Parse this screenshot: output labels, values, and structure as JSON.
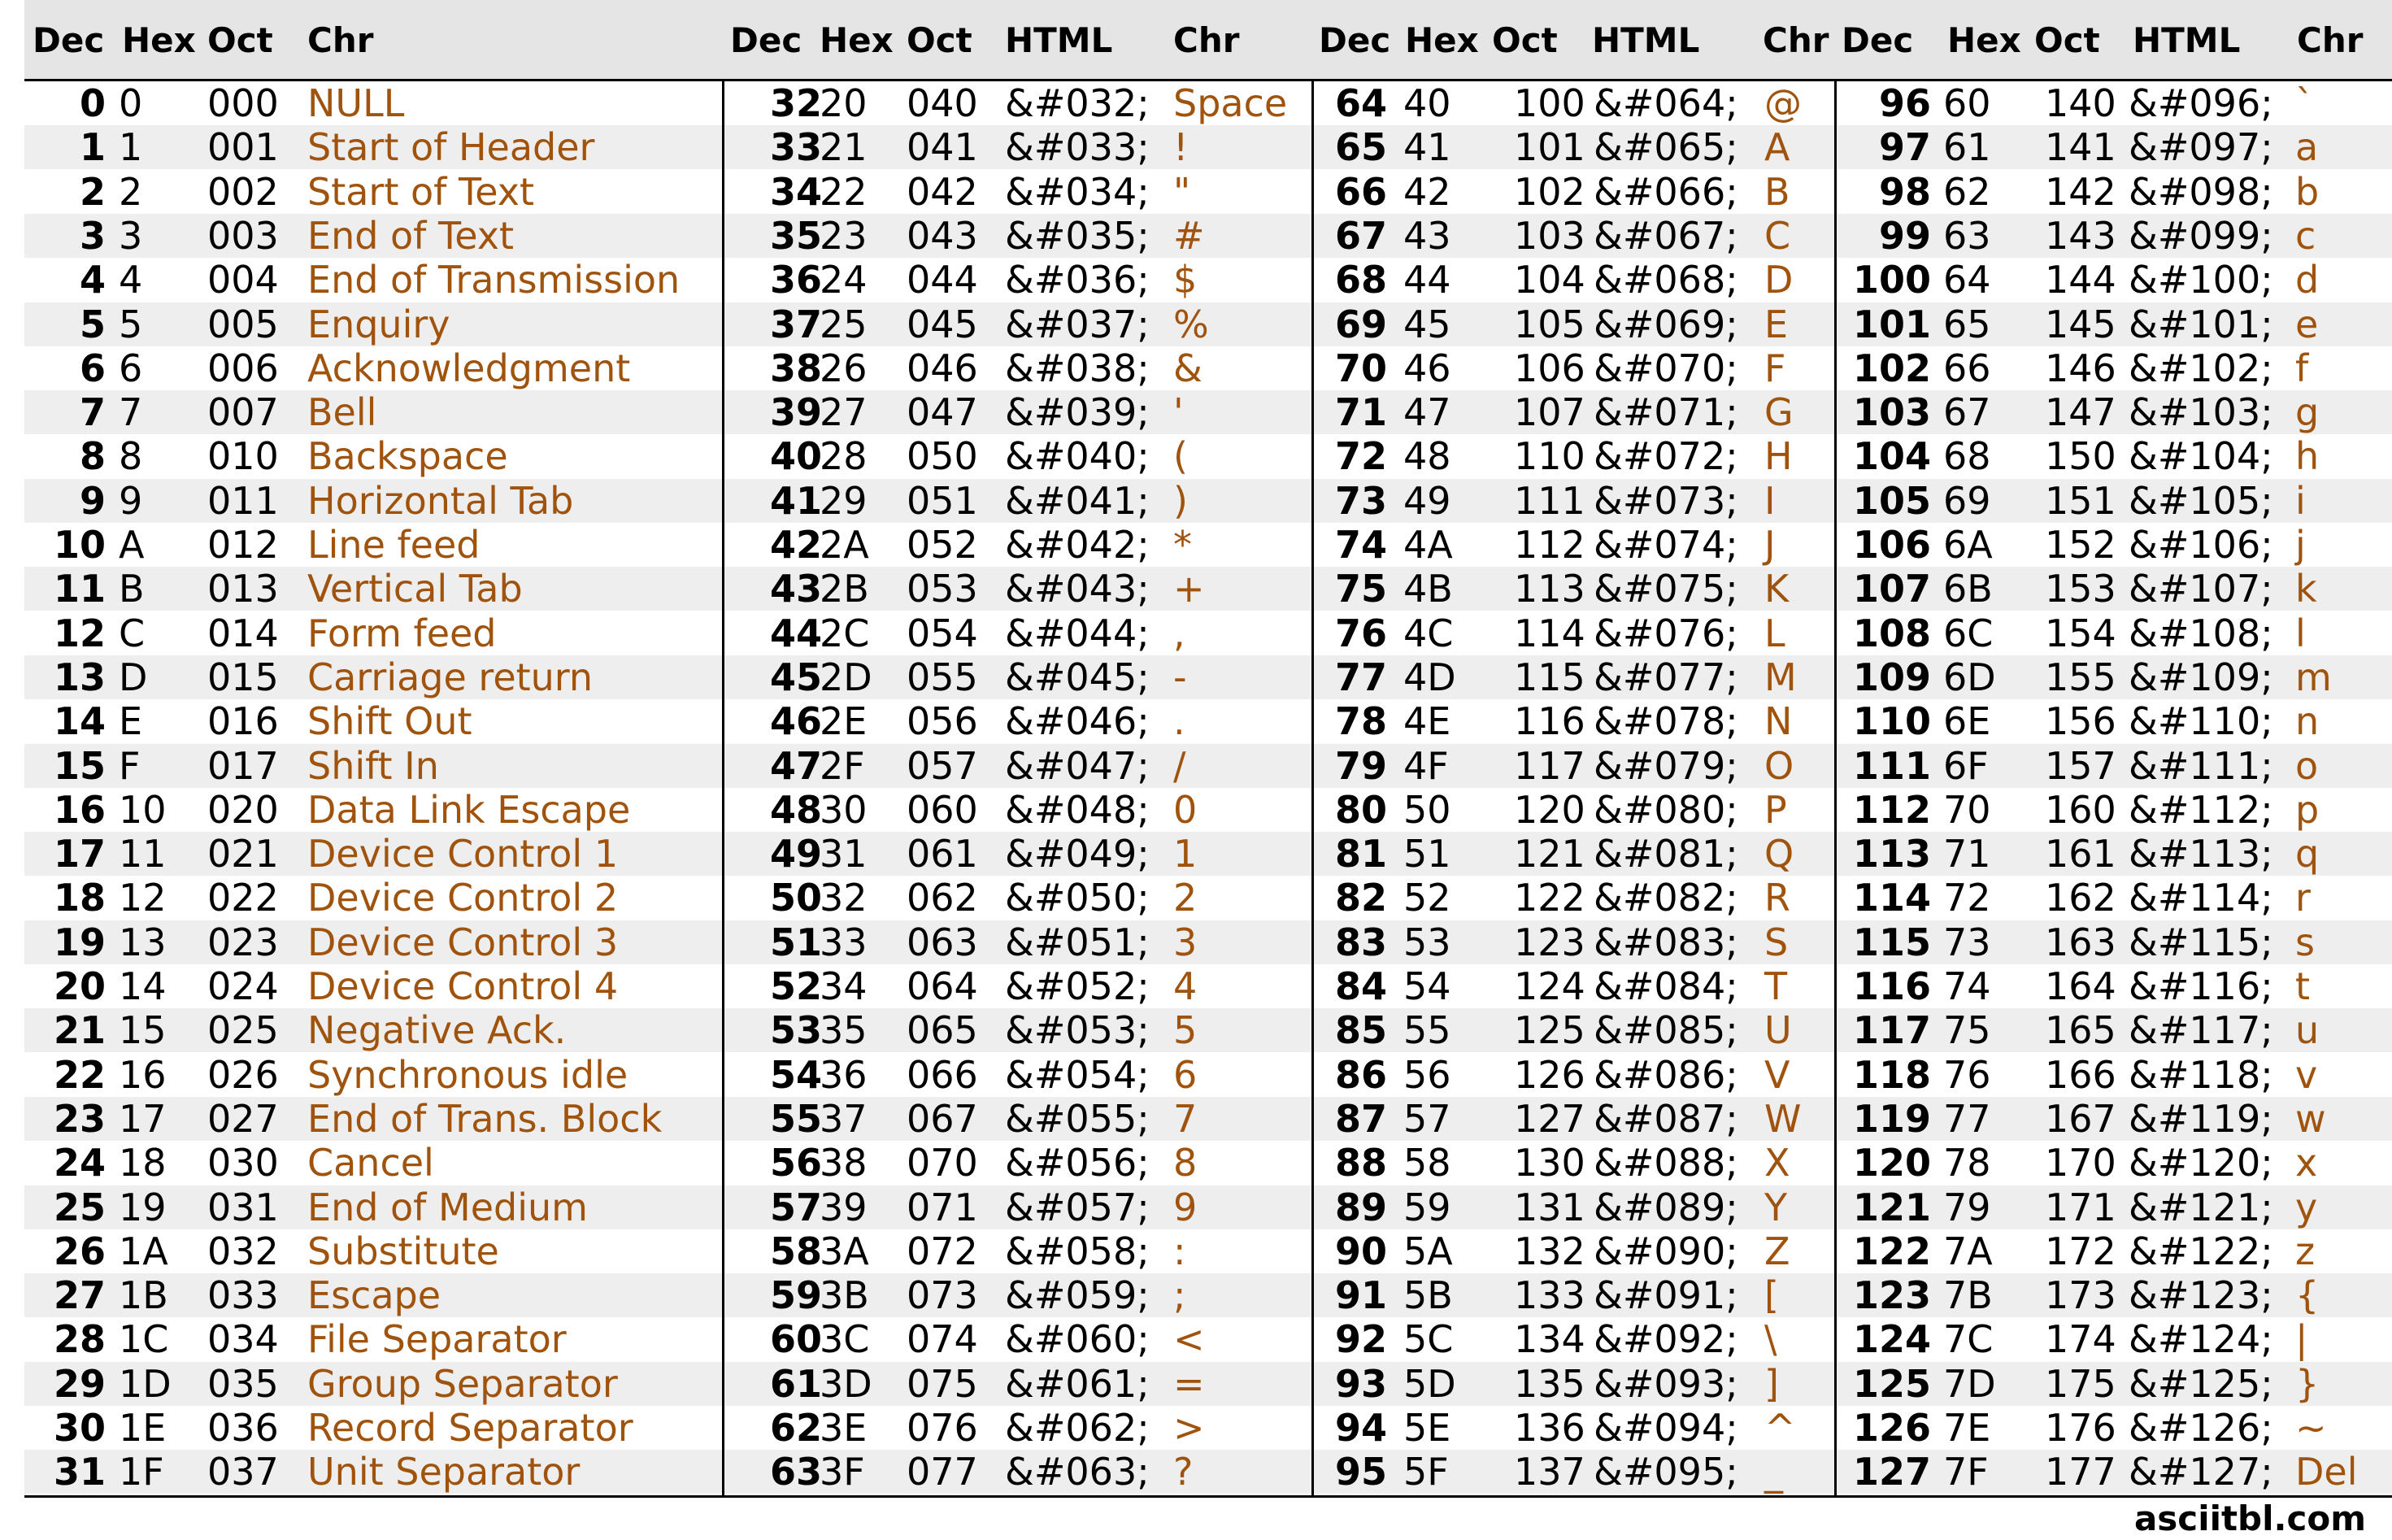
{
  "header": {
    "groups": [
      [
        "Dec",
        "Hex",
        "Oct",
        "Chr"
      ],
      [
        "Dec",
        "Hex",
        "Oct",
        "HTML",
        "Chr"
      ],
      [
        "Dec",
        "Hex",
        "Oct",
        "HTML",
        "Chr"
      ],
      [
        "Dec",
        "Hex",
        "Oct",
        "HTML",
        "Chr"
      ]
    ]
  },
  "colors": {
    "chr_text": "#a0530d",
    "header_bg": "#e5e5e5",
    "stripe_bg": "#eeeeee"
  },
  "group1": [
    {
      "dec": "0",
      "hex": "0",
      "oct": "000",
      "chr": "NULL"
    },
    {
      "dec": "1",
      "hex": "1",
      "oct": "001",
      "chr": "Start of Header"
    },
    {
      "dec": "2",
      "hex": "2",
      "oct": "002",
      "chr": "Start of Text"
    },
    {
      "dec": "3",
      "hex": "3",
      "oct": "003",
      "chr": "End of Text"
    },
    {
      "dec": "4",
      "hex": "4",
      "oct": "004",
      "chr": "End of Transmission"
    },
    {
      "dec": "5",
      "hex": "5",
      "oct": "005",
      "chr": "Enquiry"
    },
    {
      "dec": "6",
      "hex": "6",
      "oct": "006",
      "chr": "Acknowledgment"
    },
    {
      "dec": "7",
      "hex": "7",
      "oct": "007",
      "chr": "Bell"
    },
    {
      "dec": "8",
      "hex": "8",
      "oct": "010",
      "chr": "Backspace"
    },
    {
      "dec": "9",
      "hex": "9",
      "oct": "011",
      "chr": "Horizontal Tab"
    },
    {
      "dec": "10",
      "hex": "A",
      "oct": "012",
      "chr": "Line feed"
    },
    {
      "dec": "11",
      "hex": "B",
      "oct": "013",
      "chr": "Vertical Tab"
    },
    {
      "dec": "12",
      "hex": "C",
      "oct": "014",
      "chr": "Form feed"
    },
    {
      "dec": "13",
      "hex": "D",
      "oct": "015",
      "chr": "Carriage return"
    },
    {
      "dec": "14",
      "hex": "E",
      "oct": "016",
      "chr": "Shift Out"
    },
    {
      "dec": "15",
      "hex": "F",
      "oct": "017",
      "chr": "Shift In"
    },
    {
      "dec": "16",
      "hex": "10",
      "oct": "020",
      "chr": "Data Link Escape"
    },
    {
      "dec": "17",
      "hex": "11",
      "oct": "021",
      "chr": "Device Control 1"
    },
    {
      "dec": "18",
      "hex": "12",
      "oct": "022",
      "chr": "Device Control 2"
    },
    {
      "dec": "19",
      "hex": "13",
      "oct": "023",
      "chr": "Device Control 3"
    },
    {
      "dec": "20",
      "hex": "14",
      "oct": "024",
      "chr": "Device Control 4"
    },
    {
      "dec": "21",
      "hex": "15",
      "oct": "025",
      "chr": "Negative Ack."
    },
    {
      "dec": "22",
      "hex": "16",
      "oct": "026",
      "chr": "Synchronous idle"
    },
    {
      "dec": "23",
      "hex": "17",
      "oct": "027",
      "chr": "End of Trans. Block"
    },
    {
      "dec": "24",
      "hex": "18",
      "oct": "030",
      "chr": "Cancel"
    },
    {
      "dec": "25",
      "hex": "19",
      "oct": "031",
      "chr": "End of Medium"
    },
    {
      "dec": "26",
      "hex": "1A",
      "oct": "032",
      "chr": "Substitute"
    },
    {
      "dec": "27",
      "hex": "1B",
      "oct": "033",
      "chr": "Escape"
    },
    {
      "dec": "28",
      "hex": "1C",
      "oct": "034",
      "chr": "File Separator"
    },
    {
      "dec": "29",
      "hex": "1D",
      "oct": "035",
      "chr": "Group Separator"
    },
    {
      "dec": "30",
      "hex": "1E",
      "oct": "036",
      "chr": "Record Separator"
    },
    {
      "dec": "31",
      "hex": "1F",
      "oct": "037",
      "chr": "Unit Separator"
    }
  ],
  "group2": [
    {
      "dec": "32",
      "hex": "20",
      "oct": "040",
      "html": "&#032;",
      "chr": "Space"
    },
    {
      "dec": "33",
      "hex": "21",
      "oct": "041",
      "html": "&#033;",
      "chr": "!"
    },
    {
      "dec": "34",
      "hex": "22",
      "oct": "042",
      "html": "&#034;",
      "chr": "\""
    },
    {
      "dec": "35",
      "hex": "23",
      "oct": "043",
      "html": "&#035;",
      "chr": "#"
    },
    {
      "dec": "36",
      "hex": "24",
      "oct": "044",
      "html": "&#036;",
      "chr": "$"
    },
    {
      "dec": "37",
      "hex": "25",
      "oct": "045",
      "html": "&#037;",
      "chr": "%"
    },
    {
      "dec": "38",
      "hex": "26",
      "oct": "046",
      "html": "&#038;",
      "chr": "&"
    },
    {
      "dec": "39",
      "hex": "27",
      "oct": "047",
      "html": "&#039;",
      "chr": "'"
    },
    {
      "dec": "40",
      "hex": "28",
      "oct": "050",
      "html": "&#040;",
      "chr": "("
    },
    {
      "dec": "41",
      "hex": "29",
      "oct": "051",
      "html": "&#041;",
      "chr": ")"
    },
    {
      "dec": "42",
      "hex": "2A",
      "oct": "052",
      "html": "&#042;",
      "chr": "*"
    },
    {
      "dec": "43",
      "hex": "2B",
      "oct": "053",
      "html": "&#043;",
      "chr": "+"
    },
    {
      "dec": "44",
      "hex": "2C",
      "oct": "054",
      "html": "&#044;",
      "chr": ","
    },
    {
      "dec": "45",
      "hex": "2D",
      "oct": "055",
      "html": "&#045;",
      "chr": "-"
    },
    {
      "dec": "46",
      "hex": "2E",
      "oct": "056",
      "html": "&#046;",
      "chr": "."
    },
    {
      "dec": "47",
      "hex": "2F",
      "oct": "057",
      "html": "&#047;",
      "chr": "/"
    },
    {
      "dec": "48",
      "hex": "30",
      "oct": "060",
      "html": "&#048;",
      "chr": "0"
    },
    {
      "dec": "49",
      "hex": "31",
      "oct": "061",
      "html": "&#049;",
      "chr": "1"
    },
    {
      "dec": "50",
      "hex": "32",
      "oct": "062",
      "html": "&#050;",
      "chr": "2"
    },
    {
      "dec": "51",
      "hex": "33",
      "oct": "063",
      "html": "&#051;",
      "chr": "3"
    },
    {
      "dec": "52",
      "hex": "34",
      "oct": "064",
      "html": "&#052;",
      "chr": "4"
    },
    {
      "dec": "53",
      "hex": "35",
      "oct": "065",
      "html": "&#053;",
      "chr": "5"
    },
    {
      "dec": "54",
      "hex": "36",
      "oct": "066",
      "html": "&#054;",
      "chr": "6"
    },
    {
      "dec": "55",
      "hex": "37",
      "oct": "067",
      "html": "&#055;",
      "chr": "7"
    },
    {
      "dec": "56",
      "hex": "38",
      "oct": "070",
      "html": "&#056;",
      "chr": "8"
    },
    {
      "dec": "57",
      "hex": "39",
      "oct": "071",
      "html": "&#057;",
      "chr": "9"
    },
    {
      "dec": "58",
      "hex": "3A",
      "oct": "072",
      "html": "&#058;",
      "chr": ":"
    },
    {
      "dec": "59",
      "hex": "3B",
      "oct": "073",
      "html": "&#059;",
      "chr": ";"
    },
    {
      "dec": "60",
      "hex": "3C",
      "oct": "074",
      "html": "&#060;",
      "chr": "<"
    },
    {
      "dec": "61",
      "hex": "3D",
      "oct": "075",
      "html": "&#061;",
      "chr": "="
    },
    {
      "dec": "62",
      "hex": "3E",
      "oct": "076",
      "html": "&#062;",
      "chr": ">"
    },
    {
      "dec": "63",
      "hex": "3F",
      "oct": "077",
      "html": "&#063;",
      "chr": "?"
    }
  ],
  "group3": [
    {
      "dec": "64",
      "hex": "40",
      "oct": "100",
      "html": "&#064;",
      "chr": "@"
    },
    {
      "dec": "65",
      "hex": "41",
      "oct": "101",
      "html": "&#065;",
      "chr": "A"
    },
    {
      "dec": "66",
      "hex": "42",
      "oct": "102",
      "html": "&#066;",
      "chr": "B"
    },
    {
      "dec": "67",
      "hex": "43",
      "oct": "103",
      "html": "&#067;",
      "chr": "C"
    },
    {
      "dec": "68",
      "hex": "44",
      "oct": "104",
      "html": "&#068;",
      "chr": "D"
    },
    {
      "dec": "69",
      "hex": "45",
      "oct": "105",
      "html": "&#069;",
      "chr": "E"
    },
    {
      "dec": "70",
      "hex": "46",
      "oct": "106",
      "html": "&#070;",
      "chr": "F"
    },
    {
      "dec": "71",
      "hex": "47",
      "oct": "107",
      "html": "&#071;",
      "chr": "G"
    },
    {
      "dec": "72",
      "hex": "48",
      "oct": "110",
      "html": "&#072;",
      "chr": "H"
    },
    {
      "dec": "73",
      "hex": "49",
      "oct": "111",
      "html": "&#073;",
      "chr": "I"
    },
    {
      "dec": "74",
      "hex": "4A",
      "oct": "112",
      "html": "&#074;",
      "chr": "J"
    },
    {
      "dec": "75",
      "hex": "4B",
      "oct": "113",
      "html": "&#075;",
      "chr": "K"
    },
    {
      "dec": "76",
      "hex": "4C",
      "oct": "114",
      "html": "&#076;",
      "chr": "L"
    },
    {
      "dec": "77",
      "hex": "4D",
      "oct": "115",
      "html": "&#077;",
      "chr": "M"
    },
    {
      "dec": "78",
      "hex": "4E",
      "oct": "116",
      "html": "&#078;",
      "chr": "N"
    },
    {
      "dec": "79",
      "hex": "4F",
      "oct": "117",
      "html": "&#079;",
      "chr": "O"
    },
    {
      "dec": "80",
      "hex": "50",
      "oct": "120",
      "html": "&#080;",
      "chr": "P"
    },
    {
      "dec": "81",
      "hex": "51",
      "oct": "121",
      "html": "&#081;",
      "chr": "Q"
    },
    {
      "dec": "82",
      "hex": "52",
      "oct": "122",
      "html": "&#082;",
      "chr": "R"
    },
    {
      "dec": "83",
      "hex": "53",
      "oct": "123",
      "html": "&#083;",
      "chr": "S"
    },
    {
      "dec": "84",
      "hex": "54",
      "oct": "124",
      "html": "&#084;",
      "chr": "T"
    },
    {
      "dec": "85",
      "hex": "55",
      "oct": "125",
      "html": "&#085;",
      "chr": "U"
    },
    {
      "dec": "86",
      "hex": "56",
      "oct": "126",
      "html": "&#086;",
      "chr": "V"
    },
    {
      "dec": "87",
      "hex": "57",
      "oct": "127",
      "html": "&#087;",
      "chr": "W"
    },
    {
      "dec": "88",
      "hex": "58",
      "oct": "130",
      "html": "&#088;",
      "chr": "X"
    },
    {
      "dec": "89",
      "hex": "59",
      "oct": "131",
      "html": "&#089;",
      "chr": "Y"
    },
    {
      "dec": "90",
      "hex": "5A",
      "oct": "132",
      "html": "&#090;",
      "chr": "Z"
    },
    {
      "dec": "91",
      "hex": "5B",
      "oct": "133",
      "html": "&#091;",
      "chr": "["
    },
    {
      "dec": "92",
      "hex": "5C",
      "oct": "134",
      "html": "&#092;",
      "chr": "\\"
    },
    {
      "dec": "93",
      "hex": "5D",
      "oct": "135",
      "html": "&#093;",
      "chr": "]"
    },
    {
      "dec": "94",
      "hex": "5E",
      "oct": "136",
      "html": "&#094;",
      "chr": "^"
    },
    {
      "dec": "95",
      "hex": "5F",
      "oct": "137",
      "html": "&#095;",
      "chr": "_"
    }
  ],
  "group4": [
    {
      "dec": "96",
      "hex": "60",
      "oct": "140",
      "html": "&#096;",
      "chr": "`"
    },
    {
      "dec": "97",
      "hex": "61",
      "oct": "141",
      "html": "&#097;",
      "chr": "a"
    },
    {
      "dec": "98",
      "hex": "62",
      "oct": "142",
      "html": "&#098;",
      "chr": "b"
    },
    {
      "dec": "99",
      "hex": "63",
      "oct": "143",
      "html": "&#099;",
      "chr": "c"
    },
    {
      "dec": "100",
      "hex": "64",
      "oct": "144",
      "html": "&#100;",
      "chr": "d"
    },
    {
      "dec": "101",
      "hex": "65",
      "oct": "145",
      "html": "&#101;",
      "chr": "e"
    },
    {
      "dec": "102",
      "hex": "66",
      "oct": "146",
      "html": "&#102;",
      "chr": "f"
    },
    {
      "dec": "103",
      "hex": "67",
      "oct": "147",
      "html": "&#103;",
      "chr": "g"
    },
    {
      "dec": "104",
      "hex": "68",
      "oct": "150",
      "html": "&#104;",
      "chr": "h"
    },
    {
      "dec": "105",
      "hex": "69",
      "oct": "151",
      "html": "&#105;",
      "chr": "i"
    },
    {
      "dec": "106",
      "hex": "6A",
      "oct": "152",
      "html": "&#106;",
      "chr": "j"
    },
    {
      "dec": "107",
      "hex": "6B",
      "oct": "153",
      "html": "&#107;",
      "chr": "k"
    },
    {
      "dec": "108",
      "hex": "6C",
      "oct": "154",
      "html": "&#108;",
      "chr": "l"
    },
    {
      "dec": "109",
      "hex": "6D",
      "oct": "155",
      "html": "&#109;",
      "chr": "m"
    },
    {
      "dec": "110",
      "hex": "6E",
      "oct": "156",
      "html": "&#110;",
      "chr": "n"
    },
    {
      "dec": "111",
      "hex": "6F",
      "oct": "157",
      "html": "&#111;",
      "chr": "o"
    },
    {
      "dec": "112",
      "hex": "70",
      "oct": "160",
      "html": "&#112;",
      "chr": "p"
    },
    {
      "dec": "113",
      "hex": "71",
      "oct": "161",
      "html": "&#113;",
      "chr": "q"
    },
    {
      "dec": "114",
      "hex": "72",
      "oct": "162",
      "html": "&#114;",
      "chr": "r"
    },
    {
      "dec": "115",
      "hex": "73",
      "oct": "163",
      "html": "&#115;",
      "chr": "s"
    },
    {
      "dec": "116",
      "hex": "74",
      "oct": "164",
      "html": "&#116;",
      "chr": "t"
    },
    {
      "dec": "117",
      "hex": "75",
      "oct": "165",
      "html": "&#117;",
      "chr": "u"
    },
    {
      "dec": "118",
      "hex": "76",
      "oct": "166",
      "html": "&#118;",
      "chr": "v"
    },
    {
      "dec": "119",
      "hex": "77",
      "oct": "167",
      "html": "&#119;",
      "chr": "w"
    },
    {
      "dec": "120",
      "hex": "78",
      "oct": "170",
      "html": "&#120;",
      "chr": "x"
    },
    {
      "dec": "121",
      "hex": "79",
      "oct": "171",
      "html": "&#121;",
      "chr": "y"
    },
    {
      "dec": "122",
      "hex": "7A",
      "oct": "172",
      "html": "&#122;",
      "chr": "z"
    },
    {
      "dec": "123",
      "hex": "7B",
      "oct": "173",
      "html": "&#123;",
      "chr": "{"
    },
    {
      "dec": "124",
      "hex": "7C",
      "oct": "174",
      "html": "&#124;",
      "chr": "|"
    },
    {
      "dec": "125",
      "hex": "7D",
      "oct": "175",
      "html": "&#125;",
      "chr": "}"
    },
    {
      "dec": "126",
      "hex": "7E",
      "oct": "176",
      "html": "&#126;",
      "chr": "~"
    },
    {
      "dec": "127",
      "hex": "7F",
      "oct": "177",
      "html": "&#127;",
      "chr": "Del"
    }
  ],
  "footer": {
    "site": "asciitbl.com"
  }
}
